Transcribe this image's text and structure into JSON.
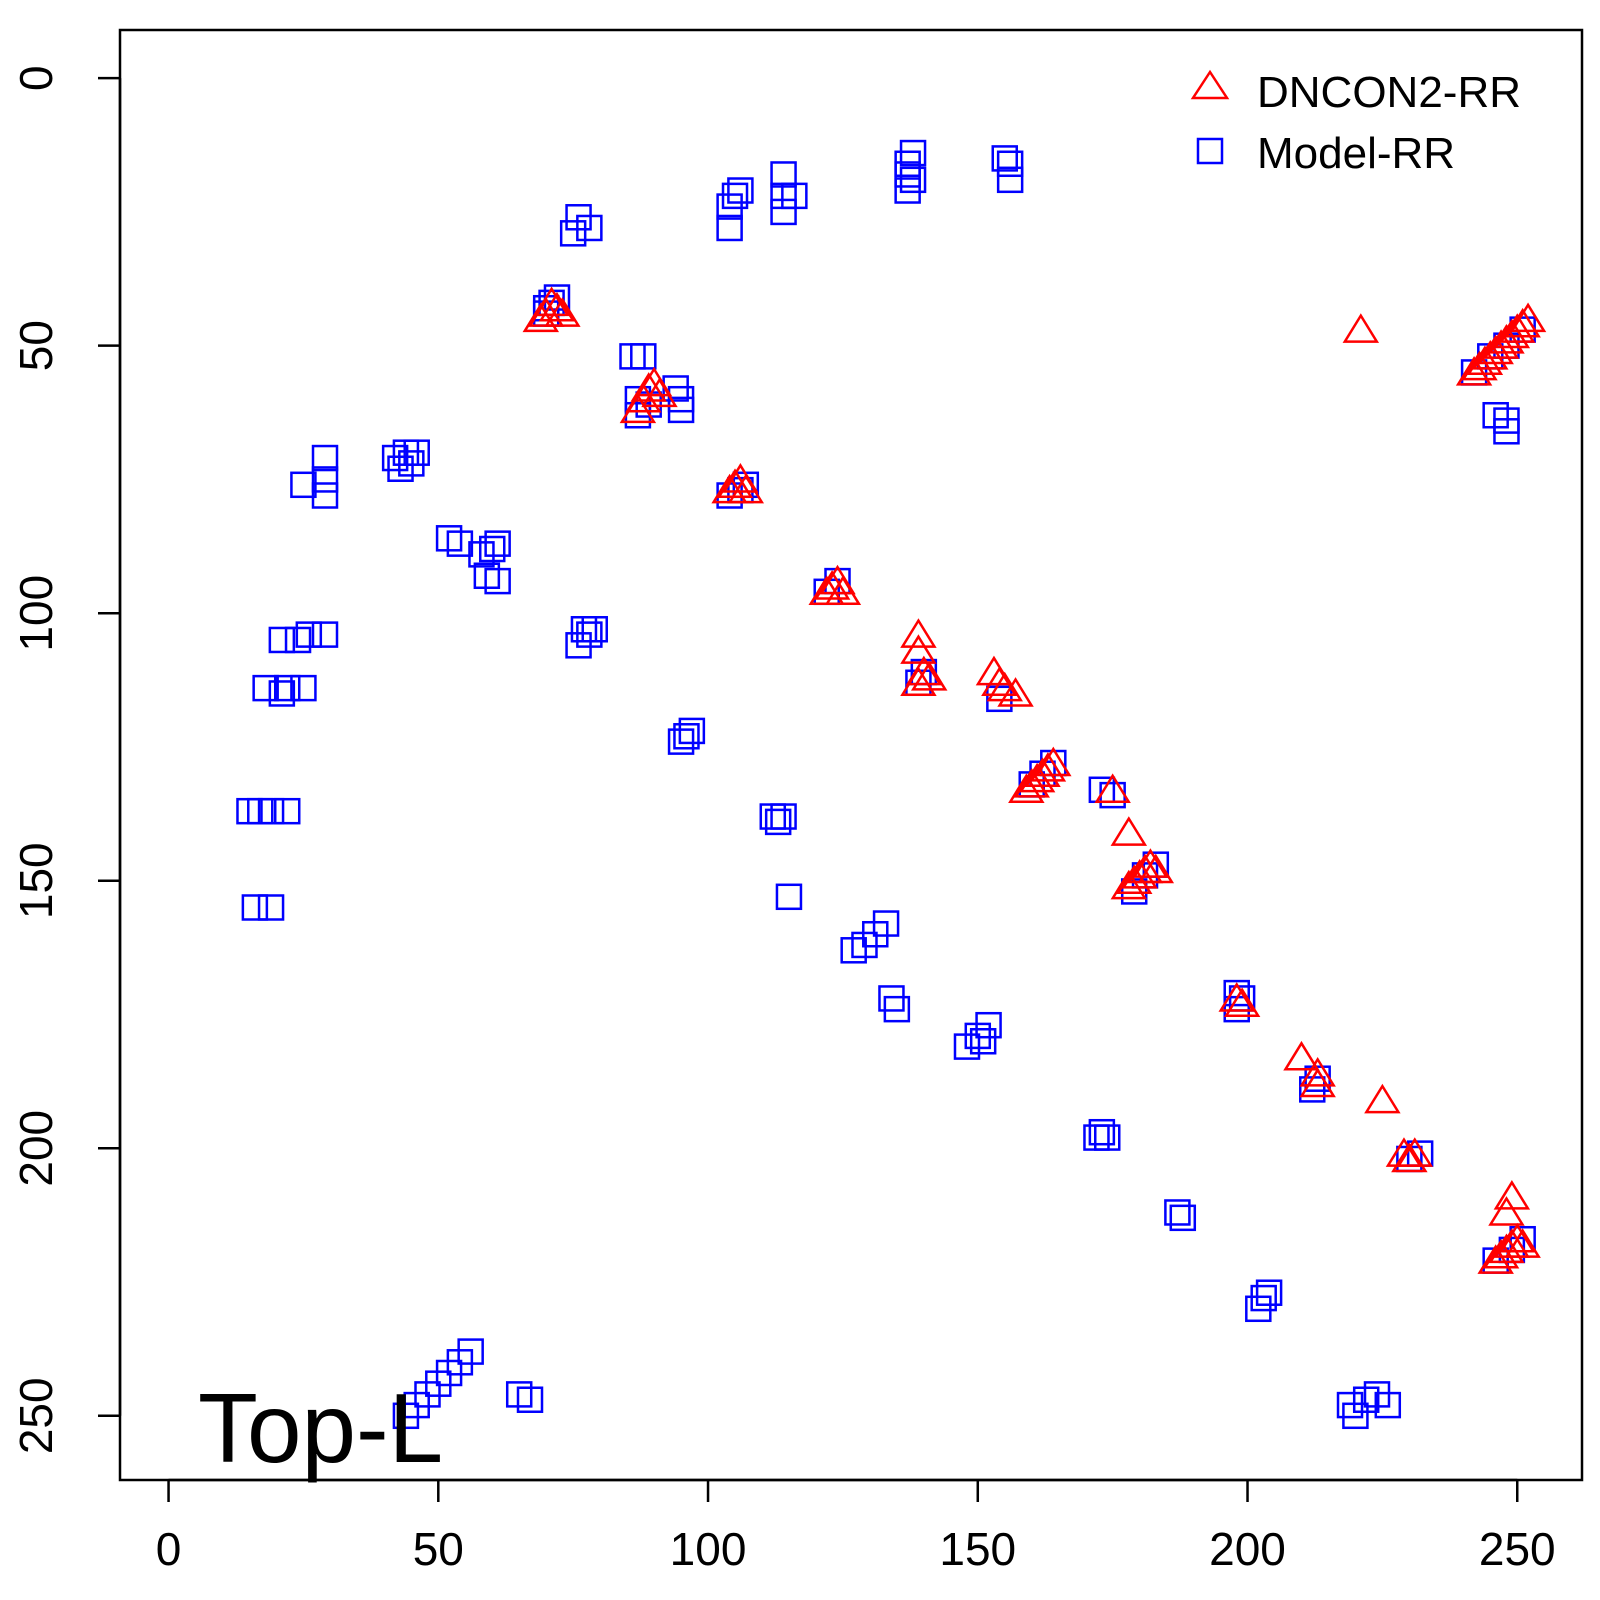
{
  "chart_data": {
    "type": "scatter",
    "title": "",
    "xlabel": "",
    "ylabel": "",
    "xlim": [
      -9,
      262
    ],
    "ylim": [
      262,
      -9
    ],
    "y_inverted": true,
    "grid": false,
    "legend_position": "top-right",
    "annotation": "Top-L",
    "x_ticks": [
      0,
      50,
      100,
      150,
      200,
      250
    ],
    "y_ticks": [
      0,
      50,
      100,
      150,
      200,
      250
    ],
    "x_tick_labels": [
      "0",
      "50",
      "100",
      "150",
      "200",
      "250"
    ],
    "y_tick_labels": [
      "0",
      "50",
      "100",
      "150",
      "200",
      "250"
    ],
    "series": [
      {
        "name": "Model-RR",
        "marker": "square",
        "color": "#0000ff",
        "points": [
          [
            15,
            137
          ],
          [
            17,
            137
          ],
          [
            19,
            137
          ],
          [
            22,
            137
          ],
          [
            16,
            155
          ],
          [
            19,
            155
          ],
          [
            22,
            114
          ],
          [
            21,
            115
          ],
          [
            25,
            114
          ],
          [
            18,
            114
          ],
          [
            21,
            105
          ],
          [
            24,
            105
          ],
          [
            26,
            104
          ],
          [
            29,
            104
          ],
          [
            25,
            76
          ],
          [
            29,
            75
          ],
          [
            29,
            78
          ],
          [
            29,
            71
          ],
          [
            42,
            71
          ],
          [
            44,
            70
          ],
          [
            46,
            70
          ],
          [
            43,
            73
          ],
          [
            45,
            72
          ],
          [
            52,
            86
          ],
          [
            54,
            87
          ],
          [
            58,
            89
          ],
          [
            60,
            88
          ],
          [
            61,
            87
          ],
          [
            59,
            93
          ],
          [
            61,
            94
          ],
          [
            70,
            43
          ],
          [
            71,
            42
          ],
          [
            72,
            41
          ],
          [
            70,
            44
          ],
          [
            75,
            29
          ],
          [
            76,
            26
          ],
          [
            78,
            28
          ],
          [
            77,
            103
          ],
          [
            78,
            104
          ],
          [
            76,
            106
          ],
          [
            79,
            103
          ],
          [
            86,
            52
          ],
          [
            88,
            52
          ],
          [
            87,
            60
          ],
          [
            89,
            61
          ],
          [
            87,
            63
          ],
          [
            94,
            58
          ],
          [
            95,
            60
          ],
          [
            95,
            62
          ],
          [
            95,
            124
          ],
          [
            96,
            123
          ],
          [
            97,
            122
          ],
          [
            104,
            24
          ],
          [
            104,
            28
          ],
          [
            105,
            22
          ],
          [
            106,
            21
          ],
          [
            104,
            78
          ],
          [
            106,
            77
          ],
          [
            107,
            76
          ],
          [
            112,
            138
          ],
          [
            113,
            139
          ],
          [
            114,
            138
          ],
          [
            115,
            153
          ],
          [
            114,
            18
          ],
          [
            114,
            22
          ],
          [
            114,
            25
          ],
          [
            116,
            22
          ],
          [
            122,
            96
          ],
          [
            124,
            94
          ],
          [
            127,
            163
          ],
          [
            129,
            162
          ],
          [
            131,
            160
          ],
          [
            133,
            158
          ],
          [
            134,
            172
          ],
          [
            135,
            174
          ],
          [
            137,
            16
          ],
          [
            137,
            18
          ],
          [
            137,
            21
          ],
          [
            138,
            14
          ],
          [
            138,
            19
          ],
          [
            139,
            113
          ],
          [
            140,
            111
          ],
          [
            148,
            181
          ],
          [
            150,
            179
          ],
          [
            152,
            177
          ],
          [
            151,
            180
          ],
          [
            155,
            15
          ],
          [
            156,
            19
          ],
          [
            156,
            16
          ],
          [
            154,
            116
          ],
          [
            160,
            132
          ],
          [
            162,
            130
          ],
          [
            164,
            128
          ],
          [
            173,
            133
          ],
          [
            175,
            134
          ],
          [
            172,
            198
          ],
          [
            173,
            197
          ],
          [
            174,
            198
          ],
          [
            179,
            152
          ],
          [
            181,
            149
          ],
          [
            183,
            147
          ],
          [
            187,
            212
          ],
          [
            188,
            213
          ],
          [
            198,
            171
          ],
          [
            199,
            172
          ],
          [
            198,
            174
          ],
          [
            202,
            230
          ],
          [
            203,
            228
          ],
          [
            204,
            227
          ],
          [
            213,
            187
          ],
          [
            212,
            189
          ],
          [
            219,
            248
          ],
          [
            220,
            250
          ],
          [
            222,
            247
          ],
          [
            224,
            246
          ],
          [
            226,
            248
          ],
          [
            230,
            202
          ],
          [
            232,
            201
          ],
          [
            246,
            63
          ],
          [
            248,
            64
          ],
          [
            248,
            66
          ],
          [
            242,
            55
          ],
          [
            245,
            52
          ],
          [
            248,
            50
          ],
          [
            251,
            47
          ],
          [
            246,
            221
          ],
          [
            249,
            219
          ],
          [
            251,
            217
          ],
          [
            44,
            250
          ],
          [
            46,
            248
          ],
          [
            48,
            246
          ],
          [
            50,
            244
          ],
          [
            52,
            242
          ],
          [
            54,
            240
          ],
          [
            56,
            238
          ],
          [
            65,
            246
          ],
          [
            67,
            247
          ]
        ]
      },
      {
        "name": "DNCON2-RR",
        "marker": "triangle",
        "color": "#ff0000",
        "points": [
          [
            70,
            44
          ],
          [
            71,
            42
          ],
          [
            72,
            43
          ],
          [
            73,
            44
          ],
          [
            69,
            45
          ],
          [
            87,
            62
          ],
          [
            88,
            60
          ],
          [
            89,
            58
          ],
          [
            90,
            57
          ],
          [
            91,
            59
          ],
          [
            104,
            77
          ],
          [
            105,
            76
          ],
          [
            106,
            75
          ],
          [
            107,
            77
          ],
          [
            122,
            96
          ],
          [
            123,
            95
          ],
          [
            124,
            94
          ],
          [
            125,
            96
          ],
          [
            139,
            104
          ],
          [
            139,
            107
          ],
          [
            140,
            111
          ],
          [
            139,
            113
          ],
          [
            141,
            112
          ],
          [
            153,
            111
          ],
          [
            154,
            113
          ],
          [
            155,
            114
          ],
          [
            157,
            115
          ],
          [
            159,
            133
          ],
          [
            160,
            132
          ],
          [
            161,
            131
          ],
          [
            162,
            130
          ],
          [
            163,
            129
          ],
          [
            164,
            128
          ],
          [
            175,
            133
          ],
          [
            178,
            141
          ],
          [
            178,
            151
          ],
          [
            179,
            150
          ],
          [
            180,
            149
          ],
          [
            181,
            148
          ],
          [
            182,
            147
          ],
          [
            183,
            148
          ],
          [
            198,
            172
          ],
          [
            199,
            173
          ],
          [
            210,
            183
          ],
          [
            213,
            186
          ],
          [
            213,
            188
          ],
          [
            221,
            47
          ],
          [
            225,
            191
          ],
          [
            229,
            201
          ],
          [
            230,
            202
          ],
          [
            231,
            201
          ],
          [
            242,
            55
          ],
          [
            243,
            54
          ],
          [
            244,
            53
          ],
          [
            245,
            52
          ],
          [
            246,
            51
          ],
          [
            247,
            50
          ],
          [
            248,
            49
          ],
          [
            249,
            48
          ],
          [
            250,
            47
          ],
          [
            251,
            46
          ],
          [
            252,
            45
          ],
          [
            246,
            221
          ],
          [
            247,
            220
          ],
          [
            248,
            219
          ],
          [
            249,
            218
          ],
          [
            250,
            217
          ],
          [
            251,
            218
          ],
          [
            248,
            212
          ],
          [
            249,
            209
          ]
        ]
      }
    ]
  }
}
